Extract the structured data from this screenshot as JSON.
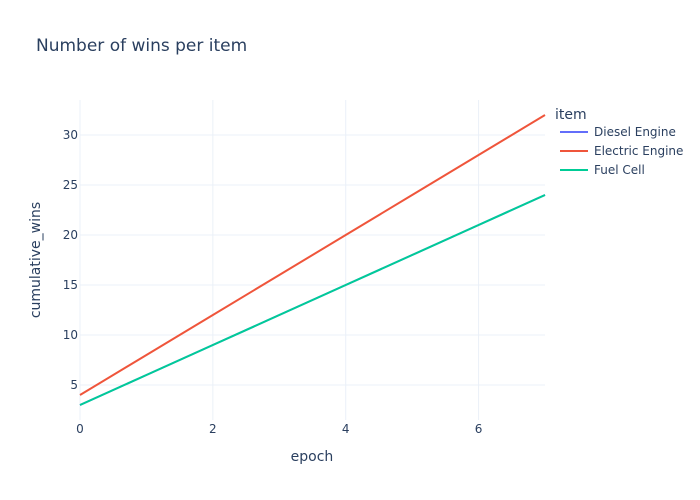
{
  "chart_data": {
    "type": "line",
    "title": "Number of wins per item",
    "xlabel": "epoch",
    "ylabel": "cumulative_wins",
    "xlim": [
      0,
      7
    ],
    "ylim": [
      1.5,
      33.5
    ],
    "xticks": [
      0,
      2,
      4,
      6
    ],
    "yticks": [
      5,
      10,
      15,
      20,
      25,
      30
    ],
    "grid": true,
    "legend": {
      "title": "item",
      "placement": "top-right"
    },
    "series": [
      {
        "name": "Diesel Engine",
        "color": "#636efa",
        "x": [
          0,
          1,
          2,
          3,
          4,
          5,
          6,
          7
        ],
        "values": [
          3,
          6,
          9,
          12,
          15,
          18,
          21,
          24
        ]
      },
      {
        "name": "Electric Engine",
        "color": "#ef553b",
        "x": [
          0,
          1,
          2,
          3,
          4,
          5,
          6,
          7
        ],
        "values": [
          4,
          8,
          12,
          16,
          20,
          24,
          28,
          32
        ]
      },
      {
        "name": "Fuel Cell",
        "color": "#00cc96",
        "x": [
          0,
          1,
          2,
          3,
          4,
          5,
          6,
          7
        ],
        "values": [
          3,
          6,
          9,
          12,
          15,
          18,
          21,
          24
        ]
      }
    ]
  }
}
